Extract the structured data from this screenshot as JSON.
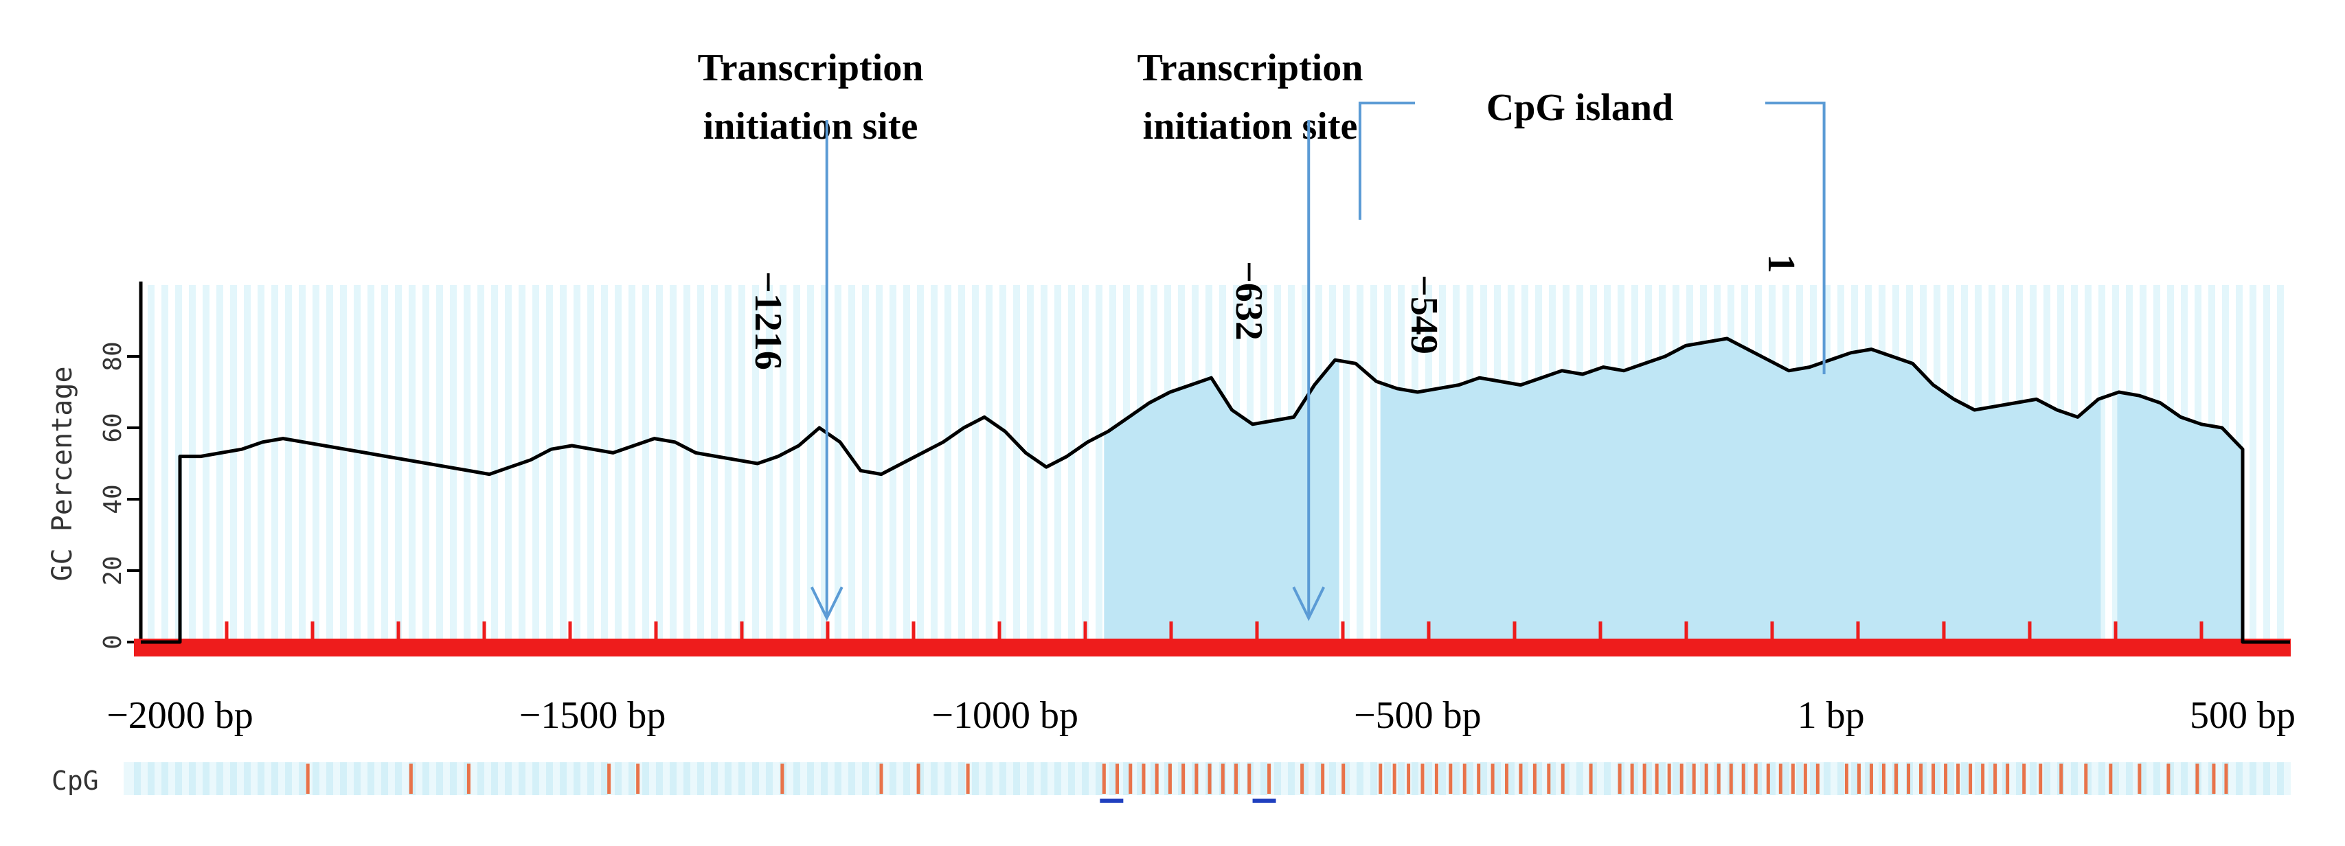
{
  "chart_data": {
    "type": "line",
    "title": "",
    "xlabel": "",
    "ylabel": "GC Percentage",
    "xlim": [
      -2000,
      500
    ],
    "ylim": [
      0,
      100
    ],
    "x_ticks": [
      {
        "value": -2000,
        "label": "−2000 bp"
      },
      {
        "value": -1500,
        "label": "−1500 bp"
      },
      {
        "value": -1000,
        "label": "−1000 bp"
      },
      {
        "value": -500,
        "label": "−500 bp"
      },
      {
        "value": 1,
        "label": "1 bp"
      },
      {
        "value": 500,
        "label": "500 bp"
      }
    ],
    "y_ticks": [
      0,
      20,
      40,
      60,
      80
    ],
    "grid": true,
    "series": [
      {
        "color": "#000000",
        "x": [
          -2000,
          -1975,
          -1950,
          -1925,
          -1900,
          -1875,
          -1850,
          -1825,
          -1800,
          -1775,
          -1750,
          -1725,
          -1700,
          -1675,
          -1650,
          -1625,
          -1600,
          -1575,
          -1550,
          -1525,
          -1500,
          -1475,
          -1450,
          -1425,
          -1400,
          -1375,
          -1350,
          -1325,
          -1300,
          -1275,
          -1250,
          -1225,
          -1200,
          -1175,
          -1150,
          -1125,
          -1100,
          -1075,
          -1050,
          -1025,
          -1000,
          -975,
          -950,
          -925,
          -900,
          -875,
          -850,
          -825,
          -800,
          -775,
          -750,
          -725,
          -700,
          -675,
          -650,
          -625,
          -600,
          -575,
          -550,
          -525,
          -500,
          -475,
          -450,
          -425,
          -400,
          -375,
          -350,
          -325,
          -300,
          -275,
          -250,
          -225,
          -200,
          -175,
          -150,
          -125,
          -100,
          -75,
          -50,
          -25,
          0,
          25,
          50,
          75,
          100,
          125,
          150,
          175,
          200,
          225,
          250,
          275,
          300,
          325,
          350,
          375,
          400,
          425,
          450,
          475,
          500
        ],
        "values": [
          52,
          52,
          53,
          54,
          56,
          57,
          56,
          55,
          54,
          53,
          52,
          51,
          50,
          49,
          48,
          47,
          49,
          51,
          54,
          55,
          54,
          53,
          55,
          57,
          56,
          53,
          52,
          51,
          50,
          52,
          55,
          60,
          56,
          48,
          47,
          50,
          53,
          56,
          60,
          63,
          59,
          53,
          49,
          52,
          56,
          59,
          63,
          67,
          70,
          72,
          74,
          65,
          61,
          62,
          63,
          72,
          79,
          78,
          73,
          71,
          70,
          71,
          72,
          74,
          73,
          72,
          74,
          76,
          75,
          77,
          76,
          78,
          80,
          83,
          84,
          85,
          82,
          79,
          76,
          77,
          79,
          81,
          82,
          80,
          78,
          72,
          68,
          65,
          66,
          67,
          68,
          65,
          63,
          68,
          70,
          69,
          67,
          63,
          61,
          60,
          54
        ]
      }
    ],
    "shaded_regions": [
      [
        -880,
        -595
      ],
      [
        -545,
        328
      ],
      [
        348,
        500
      ]
    ],
    "cpg_track": {
      "label": "CpG",
      "sites": [
        -1845,
        -1720,
        -1650,
        -1480,
        -1445,
        -1270,
        -1150,
        -1105,
        -1045,
        -880,
        -864,
        -848,
        -832,
        -816,
        -800,
        -784,
        -768,
        -752,
        -736,
        -720,
        -704,
        -680,
        -640,
        -615,
        -590,
        -545,
        -528,
        -511,
        -494,
        -477,
        -460,
        -443,
        -426,
        -409,
        -392,
        -375,
        -358,
        -341,
        -324,
        -290,
        -255,
        -240,
        -225,
        -210,
        -195,
        -180,
        -165,
        -150,
        -135,
        -120,
        -105,
        -90,
        -75,
        -60,
        -45,
        -30,
        -15,
        20,
        35,
        50,
        65,
        80,
        95,
        110,
        125,
        140,
        155,
        170,
        185,
        200,
        215,
        235,
        255,
        280,
        310,
        340,
        375,
        410,
        445,
        465,
        480
      ],
      "underlines": [
        -875,
        -690
      ]
    },
    "annotations": [
      {
        "text": "Transcription initiation site",
        "lines": [
          "Transcription",
          "initiation site"
        ],
        "x": -1216,
        "type": "arrow"
      },
      {
        "text": "Transcription initiation site",
        "lines": [
          "Transcription",
          "initiation site"
        ],
        "x": -632,
        "type": "arrow"
      },
      {
        "text": "CpG island",
        "x_start": -549,
        "x_end": 1,
        "type": "bracket"
      }
    ],
    "position_labels": [
      {
        "text": "−1216",
        "x": -1216
      },
      {
        "text": "−632",
        "x": -632
      },
      {
        "text": "−549",
        "x": -549
      },
      {
        "text": "1",
        "x": 1
      }
    ]
  }
}
